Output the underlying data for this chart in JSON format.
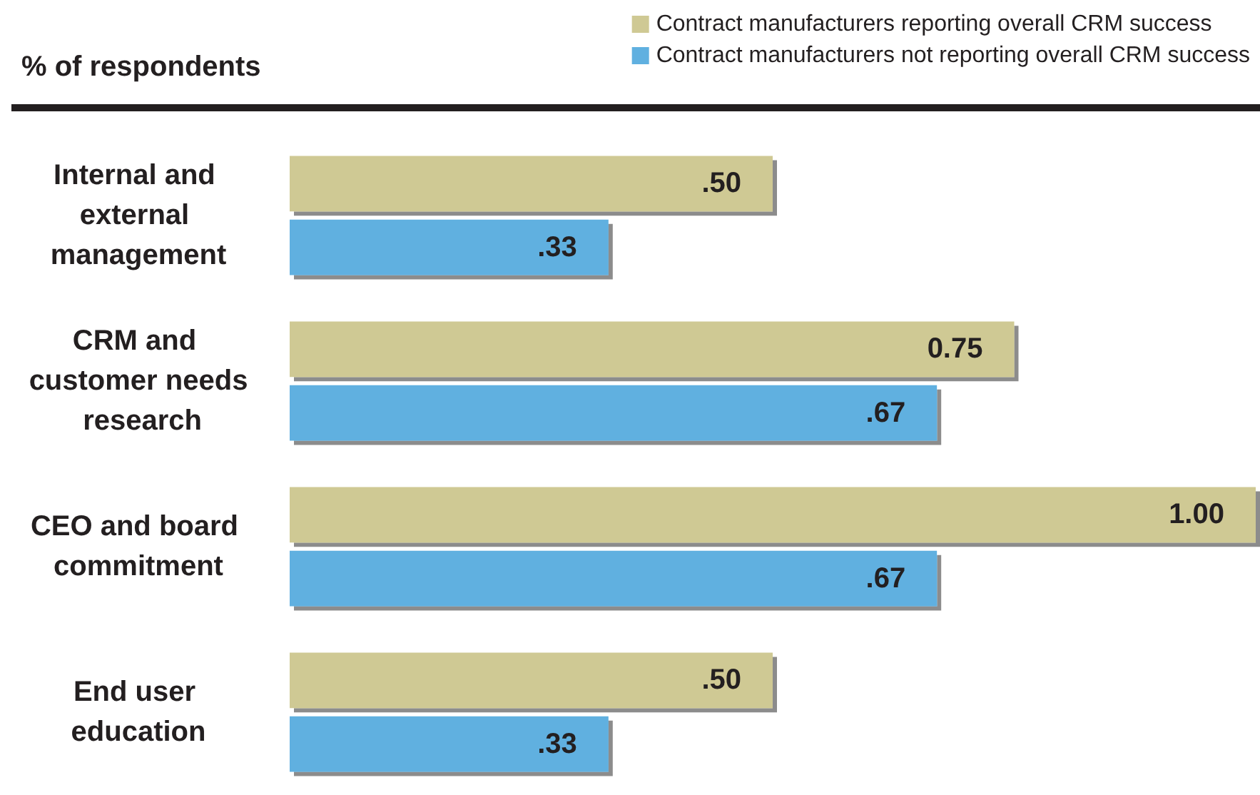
{
  "chart_data": {
    "type": "bar",
    "orientation": "horizontal",
    "title": "% of respondents",
    "categories": [
      "Internal and external management",
      "CRM and customer needs research",
      "CEO and board commitment",
      "End user education"
    ],
    "series": [
      {
        "name": "Contract manufacturers reporting overall CRM success",
        "color": "#cfc994",
        "values": [
          0.5,
          0.75,
          1.0,
          0.5
        ],
        "value_labels": [
          ".50",
          "0.75",
          "1.00",
          ".50"
        ]
      },
      {
        "name": "Contract manufacturers not reporting overall CRM success",
        "color": "#60b0e0",
        "values": [
          0.33,
          0.67,
          0.67,
          0.33
        ],
        "value_labels": [
          ".33",
          ".67",
          ".67",
          ".33"
        ]
      }
    ],
    "xlim": [
      0,
      1
    ],
    "tick_labels": "y",
    "grid": false,
    "legend": "top right"
  }
}
